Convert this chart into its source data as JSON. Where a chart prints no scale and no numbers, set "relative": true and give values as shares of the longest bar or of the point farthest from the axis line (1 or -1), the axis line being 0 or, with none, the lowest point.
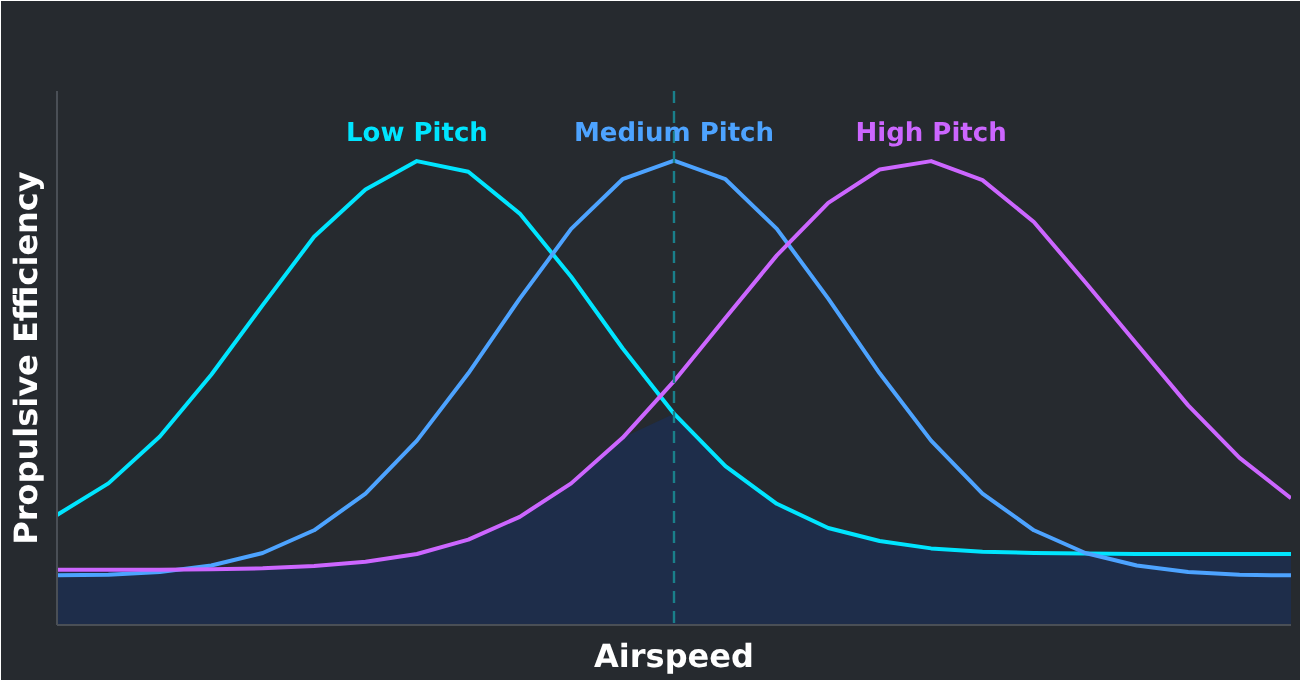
{
  "chart_data": {
    "type": "line",
    "relative": true,
    "xlabel": "Airspeed",
    "ylabel": "Propulsive Efficiency",
    "tick_labels": false,
    "marker": "none",
    "line_style": "solid",
    "categories": [
      null,
      null,
      null,
      null,
      null,
      null,
      null,
      null,
      null,
      null,
      null,
      null,
      null,
      null,
      null,
      null,
      null,
      null,
      null,
      null,
      null,
      null,
      null,
      null,
      null
    ],
    "series": [
      {
        "type": "area",
        "color": "#1e2d4a",
        "values": [
          0.119,
          0.119,
          0.119,
          0.12,
          0.122,
          0.127,
          0.136,
          0.153,
          0.184,
          0.233,
          0.305,
          0.403,
          0.455,
          0.342,
          0.261,
          0.209,
          0.181,
          0.165,
          0.158,
          0.155,
          0.154,
          0.153,
          0.153,
          0.153,
          0.153
        ]
      },
      {
        "name": "Low Pitch",
        "color": "#00e5ff",
        "values": [
          0.237,
          0.305,
          0.406,
          0.539,
          0.689,
          0.836,
          0.938,
          0.999,
          0.976,
          0.886,
          0.75,
          0.596,
          0.455,
          0.342,
          0.261,
          0.209,
          0.181,
          0.165,
          0.158,
          0.155,
          0.154,
          0.153,
          0.153,
          0.153,
          0.153
        ]
      },
      {
        "name": "Medium Pitch",
        "color": "#4da3ff",
        "values": [
          0.107,
          0.108,
          0.114,
          0.128,
          0.155,
          0.204,
          0.283,
          0.397,
          0.542,
          0.703,
          0.853,
          0.96,
          1,
          0.96,
          0.853,
          0.703,
          0.542,
          0.397,
          0.283,
          0.204,
          0.155,
          0.128,
          0.114,
          0.108,
          0.107
        ]
      },
      {
        "name": "High Pitch",
        "color": "#cc66ff",
        "values": [
          0.119,
          0.119,
          0.119,
          0.12,
          0.122,
          0.127,
          0.136,
          0.153,
          0.184,
          0.233,
          0.305,
          0.403,
          0.525,
          0.661,
          0.796,
          0.909,
          0.981,
          0.999,
          0.958,
          0.868,
          0.738,
          0.605,
          0.473,
          0.36,
          0.273
        ]
      }
    ]
  }
}
